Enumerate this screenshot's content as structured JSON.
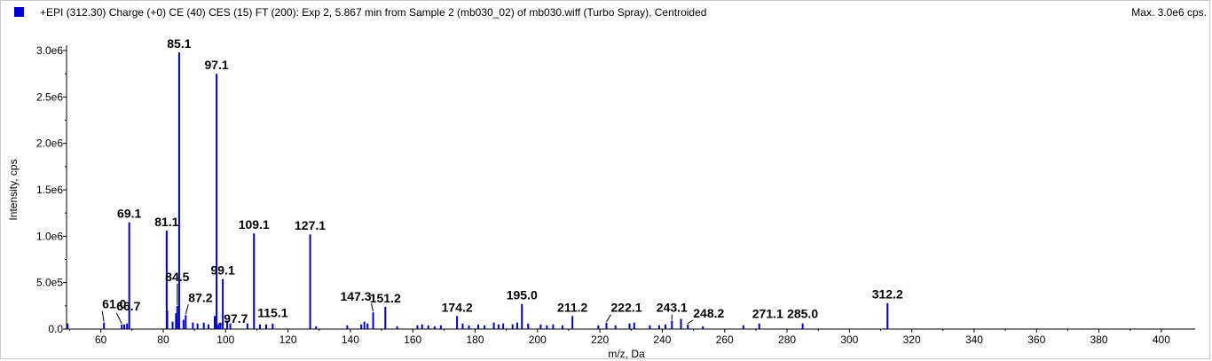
{
  "header": {
    "title": "+EPI (312.30) Charge (+0) CE (40) CES (15) FT (200): Exp 2, 5.867 min from Sample 2 (mb030_02) of mb030.wiff (Turbo Spray), Centroided",
    "max_label": "Max. 3.0e6 cps.",
    "swatch_color": "#0000cc"
  },
  "chart_data": {
    "type": "bar",
    "title": "",
    "xlabel": "m/z, Da",
    "ylabel": "Intensity, cps",
    "xlim": [
      49,
      408
    ],
    "ylim": [
      0,
      3000000
    ],
    "x_ticks": [
      60,
      80,
      100,
      120,
      140,
      160,
      180,
      200,
      220,
      240,
      260,
      280,
      300,
      320,
      340,
      360,
      380,
      400
    ],
    "y_ticks": [
      {
        "value": 0,
        "label": "0.0"
      },
      {
        "value": 500000,
        "label": "5.0e5"
      },
      {
        "value": 1000000,
        "label": "1.0e6"
      },
      {
        "value": 1500000,
        "label": "1.5e6"
      },
      {
        "value": 2000000,
        "label": "2.0e6"
      },
      {
        "value": 2500000,
        "label": "2.5e6"
      },
      {
        "value": 3000000,
        "label": "3.0e6"
      }
    ],
    "bar_color": "#0000cc",
    "peaks": [
      {
        "x": 49.3,
        "y": 60000
      },
      {
        "x": 61.0,
        "y": 70000,
        "label": "61.0"
      },
      {
        "x": 66.7,
        "y": 50000,
        "label": "66.7"
      },
      {
        "x": 67.5,
        "y": 50000
      },
      {
        "x": 68.4,
        "y": 60000
      },
      {
        "x": 69.1,
        "y": 1150000,
        "label": "69.1"
      },
      {
        "x": 81.1,
        "y": 1060000,
        "label": "81.1"
      },
      {
        "x": 81.3,
        "y": 200000
      },
      {
        "x": 83.0,
        "y": 80000
      },
      {
        "x": 84.1,
        "y": 170000
      },
      {
        "x": 84.5,
        "y": 250000,
        "label": "84.5"
      },
      {
        "x": 85.1,
        "y": 2980000,
        "label": "85.1"
      },
      {
        "x": 86.5,
        "y": 100000
      },
      {
        "x": 87.2,
        "y": 150000,
        "label": "87.2"
      },
      {
        "x": 89.5,
        "y": 70000
      },
      {
        "x": 91.0,
        "y": 60000
      },
      {
        "x": 93.0,
        "y": 70000
      },
      {
        "x": 94.5,
        "y": 50000
      },
      {
        "x": 96.5,
        "y": 140000
      },
      {
        "x": 97.1,
        "y": 2750000,
        "label": "97.1"
      },
      {
        "x": 97.7,
        "y": 50000,
        "label": "97.7"
      },
      {
        "x": 98.3,
        "y": 70000
      },
      {
        "x": 99.1,
        "y": 540000,
        "label": "99.1"
      },
      {
        "x": 100.5,
        "y": 90000
      },
      {
        "x": 101.5,
        "y": 60000
      },
      {
        "x": 107.0,
        "y": 60000
      },
      {
        "x": 109.1,
        "y": 1030000,
        "label": "109.1"
      },
      {
        "x": 111.0,
        "y": 50000
      },
      {
        "x": 113.0,
        "y": 50000
      },
      {
        "x": 115.1,
        "y": 60000,
        "label": "115.1"
      },
      {
        "x": 127.1,
        "y": 1020000,
        "label": "127.1"
      },
      {
        "x": 129.0,
        "y": 30000
      },
      {
        "x": 139.0,
        "y": 40000
      },
      {
        "x": 143.5,
        "y": 50000
      },
      {
        "x": 144.5,
        "y": 80000
      },
      {
        "x": 145.5,
        "y": 60000
      },
      {
        "x": 147.3,
        "y": 180000,
        "label": "147.3"
      },
      {
        "x": 151.2,
        "y": 240000,
        "label": "151.2"
      },
      {
        "x": 155.0,
        "y": 30000
      },
      {
        "x": 161.5,
        "y": 40000
      },
      {
        "x": 163.0,
        "y": 50000
      },
      {
        "x": 165.0,
        "y": 40000
      },
      {
        "x": 167.0,
        "y": 30000
      },
      {
        "x": 169.0,
        "y": 40000
      },
      {
        "x": 174.2,
        "y": 140000,
        "label": "174.2"
      },
      {
        "x": 176.0,
        "y": 60000
      },
      {
        "x": 178.0,
        "y": 40000
      },
      {
        "x": 181.0,
        "y": 50000
      },
      {
        "x": 183.0,
        "y": 40000
      },
      {
        "x": 186.0,
        "y": 70000
      },
      {
        "x": 187.5,
        "y": 50000
      },
      {
        "x": 189.0,
        "y": 60000
      },
      {
        "x": 192.0,
        "y": 50000
      },
      {
        "x": 193.5,
        "y": 70000
      },
      {
        "x": 195.0,
        "y": 270000,
        "label": "195.0"
      },
      {
        "x": 197.0,
        "y": 60000
      },
      {
        "x": 201.0,
        "y": 50000
      },
      {
        "x": 203.0,
        "y": 40000
      },
      {
        "x": 205.0,
        "y": 50000
      },
      {
        "x": 208.0,
        "y": 40000
      },
      {
        "x": 211.2,
        "y": 140000,
        "label": "211.2"
      },
      {
        "x": 219.5,
        "y": 40000
      },
      {
        "x": 222.1,
        "y": 70000,
        "label": "222.1"
      },
      {
        "x": 225.0,
        "y": 40000
      },
      {
        "x": 229.5,
        "y": 60000
      },
      {
        "x": 231.0,
        "y": 70000
      },
      {
        "x": 236.0,
        "y": 40000
      },
      {
        "x": 239.0,
        "y": 40000
      },
      {
        "x": 241.0,
        "y": 50000
      },
      {
        "x": 243.1,
        "y": 90000,
        "label": "243.1"
      },
      {
        "x": 246.0,
        "y": 110000
      },
      {
        "x": 248.2,
        "y": 50000,
        "label": "248.2"
      },
      {
        "x": 253.0,
        "y": 30000
      },
      {
        "x": 266.0,
        "y": 40000
      },
      {
        "x": 271.1,
        "y": 60000,
        "label": "271.1"
      },
      {
        "x": 285.0,
        "y": 60000,
        "label": "285.0"
      },
      {
        "x": 312.2,
        "y": 280000,
        "label": "312.2"
      }
    ]
  }
}
